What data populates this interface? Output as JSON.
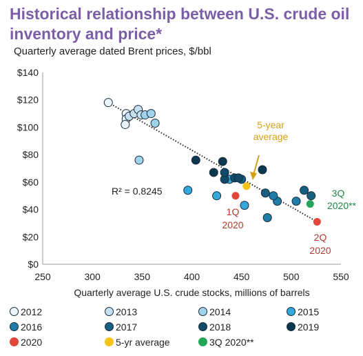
{
  "title": "Historical relationship between U.S. crude oil inventory and price*",
  "subtitle": "Quarterly average dated Brent prices, $/bbl",
  "chart_data": {
    "type": "scatter",
    "xlabel": "Quarterly average U.S. crude stocks, millions of barrels",
    "ylabel": "Quarterly average dated Brent prices, $/bbl",
    "xlim": [
      250,
      550
    ],
    "ylim": [
      0,
      140
    ],
    "x_ticks": [
      "250",
      "300",
      "350",
      "400",
      "450",
      "500",
      "550"
    ],
    "y_ticks": [
      "$0",
      "$20",
      "$40",
      "$60",
      "$80",
      "$100",
      "$120",
      "$140"
    ],
    "x_tick_values": [
      250,
      300,
      350,
      400,
      450,
      500,
      550
    ],
    "y_tick_values": [
      0,
      20,
      40,
      60,
      80,
      100,
      120,
      140
    ],
    "grid": false,
    "series": [
      {
        "name": "2012",
        "color": "#e8f3fa",
        "points": [
          [
            316,
            118
          ],
          [
            334,
            110
          ],
          [
            334,
            106
          ],
          [
            333,
            102
          ]
        ]
      },
      {
        "name": "2013",
        "color": "#c6e2f2",
        "points": [
          [
            337,
            108
          ],
          [
            342,
            110
          ],
          [
            346,
            113
          ],
          [
            349,
            109
          ]
        ]
      },
      {
        "name": "2014",
        "color": "#9fd3ec",
        "points": [
          [
            353,
            109
          ],
          [
            359,
            110
          ],
          [
            363,
            103
          ],
          [
            347,
            76
          ]
        ]
      },
      {
        "name": "2015",
        "color": "#35a8dc",
        "points": [
          [
            396,
            54
          ],
          [
            425,
            50
          ],
          [
            453,
            43
          ],
          [
            438,
            62
          ]
        ]
      },
      {
        "name": "2016",
        "color": "#1f7ea8",
        "points": [
          [
            476,
            34
          ],
          [
            505,
            46
          ],
          [
            486,
            46
          ],
          [
            482,
            50
          ]
        ]
      },
      {
        "name": "2017",
        "color": "#165f80",
        "points": [
          [
            513,
            54
          ],
          [
            520,
            50
          ],
          [
            474,
            52
          ],
          [
            450,
            62
          ]
        ]
      },
      {
        "name": "2018",
        "color": "#0f4a66",
        "points": [
          [
            433,
            62
          ],
          [
            443,
            63
          ],
          [
            447,
            63
          ],
          [
            433,
            67
          ]
        ]
      },
      {
        "name": "2019",
        "color": "#0b3850",
        "points": [
          [
            404,
            76
          ],
          [
            422,
            67
          ],
          [
            431,
            75
          ],
          [
            471,
            69
          ]
        ]
      },
      {
        "name": "2020",
        "color": "#e3473a",
        "points": [
          [
            444,
            50
          ],
          [
            526,
            31
          ]
        ]
      },
      {
        "name": "5-yr average",
        "color": "#f5c518",
        "points": [
          [
            455,
            57
          ]
        ]
      },
      {
        "name": "3Q 2020**",
        "color": "#22a65a",
        "points": [
          [
            519,
            44
          ]
        ]
      }
    ],
    "trendline": {
      "from": [
        316,
        118
      ],
      "to": [
        526,
        31
      ]
    },
    "annotations": {
      "r2": "R² = 0.8245",
      "avg_line1": "5-year",
      "avg_line2": "average",
      "q1_line1": "1Q",
      "q1_line2": "2020",
      "q2_line1": "2Q",
      "q2_line2": "2020",
      "q3_line1": "3Q",
      "q3_line2": "2020**"
    },
    "annotation_colors": {
      "red": "#b03a2e",
      "gold": "#d4a017",
      "green": "#1e8a4a"
    }
  },
  "legend": [
    {
      "label": "2012",
      "color": "#e8f3fa"
    },
    {
      "label": "2013",
      "color": "#c6e2f2"
    },
    {
      "label": "2014",
      "color": "#9fd3ec"
    },
    {
      "label": "2015",
      "color": "#35a8dc"
    },
    {
      "label": "2016",
      "color": "#1f7ea8"
    },
    {
      "label": "2017",
      "color": "#165f80"
    },
    {
      "label": "2018",
      "color": "#0f4a66"
    },
    {
      "label": "2019",
      "color": "#0b3850"
    },
    {
      "label": "2020",
      "color": "#e3473a"
    },
    {
      "label": "5-yr average",
      "color": "#f5c518"
    },
    {
      "label": "3Q 2020**",
      "color": "#22a65a"
    }
  ]
}
